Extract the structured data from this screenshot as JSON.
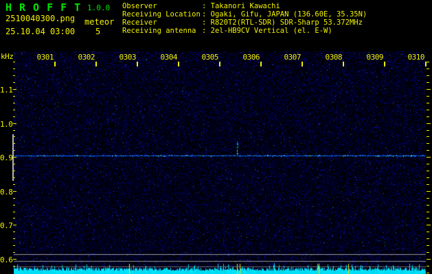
{
  "header": {
    "title": "HROFFT",
    "version": "1.0.0",
    "filename": "2510040300.png",
    "mode": "meteor",
    "datetime": "25.10.04 03:00",
    "echo_count": "5",
    "info": [
      {
        "label": "Observer",
        "sep": ":",
        "value": "Takanori Kawachi"
      },
      {
        "label": "Receiving Location",
        "sep": ":",
        "value": "Ogaki, Gifu, JAPAN (136.60E, 35.35N)"
      },
      {
        "label": "Receiver",
        "sep": ":",
        "value": "R820T2(RTL-SDR) SDR-Sharp 53.372MHz"
      },
      {
        "label": "Receiving antenna",
        "sep": ":",
        "value": "2el-HB9CV Vertical (el. E-W)"
      }
    ]
  },
  "chart": {
    "type": "spectrogram",
    "y_axis_label": "kHz",
    "y_ticks": [
      "1.1",
      "1.0",
      "0.9",
      "0.8",
      "0.7",
      "0.6"
    ],
    "x_ticks": [
      "0301",
      "0302",
      "0303",
      "0304",
      "0305",
      "0306",
      "0307",
      "0308",
      "0309",
      "0310"
    ],
    "x_span_minutes": 10,
    "carrier_khz": 0.905,
    "echo_markers_min": [
      2.8,
      5.42,
      5.48,
      7.4,
      8.12
    ],
    "echo_streak_min": 5.42
  },
  "colors": {
    "accent_yellow": "#f2f200",
    "title_green": "#00e400",
    "wave_cyan": "#00e4ff",
    "carrier_blue": "#0868e8",
    "grid_gray": "#9a9a9a",
    "grid_gray_dim": "#6e6e6e",
    "marker_yellow": "#f2f200"
  }
}
